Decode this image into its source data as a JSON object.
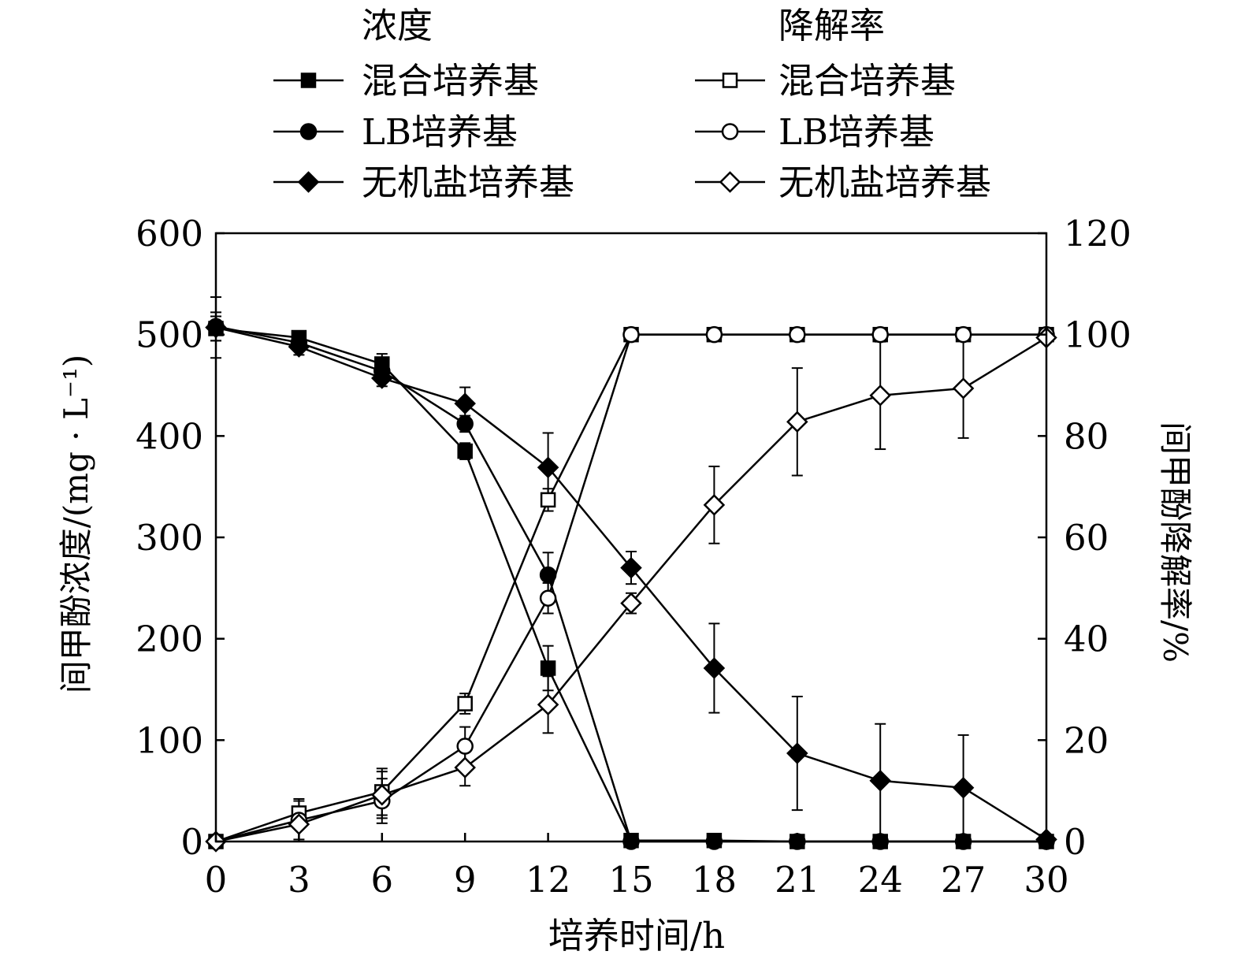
{
  "chart_data": {
    "type": "line",
    "xlabel": "培养时间/h",
    "ylabel_left": "间甲酚浓度/(mg · L⁻¹)",
    "ylabel_right": "间甲酚降解率/%",
    "x": [
      0,
      3,
      6,
      9,
      12,
      15,
      18,
      21,
      24,
      27,
      30
    ],
    "xlim": [
      0,
      30
    ],
    "ylim_left": [
      0,
      600
    ],
    "ylim_right": [
      0,
      120
    ],
    "xticks": [
      "0",
      "3",
      "6",
      "9",
      "12",
      "15",
      "18",
      "21",
      "24",
      "27",
      "30"
    ],
    "yticks_left": [
      "0",
      "100",
      "200",
      "300",
      "400",
      "500",
      "600"
    ],
    "yticks_right": [
      "0",
      "20",
      "40",
      "60",
      "80",
      "100",
      "120"
    ],
    "legend": {
      "concentration_title": "浓度",
      "degradation_title": "降解率"
    },
    "series": [
      {
        "name": "混合培养基",
        "group": "浓度",
        "axis": "left",
        "marker": "square",
        "filled": true,
        "values": [
          506,
          497,
          471,
          385,
          171,
          1,
          1,
          0,
          0,
          0,
          0
        ],
        "errors": [
          12,
          4,
          10,
          8,
          22,
          2,
          2,
          2,
          2,
          2,
          2
        ]
      },
      {
        "name": "LB培养基",
        "group": "浓度",
        "axis": "left",
        "marker": "circle",
        "filled": true,
        "values": [
          508,
          492,
          464,
          412,
          263,
          0,
          0,
          0,
          0,
          0,
          0
        ],
        "errors": [
          14,
          6,
          10,
          8,
          22,
          2,
          2,
          2,
          2,
          2,
          2
        ]
      },
      {
        "name": "无机盐培养基",
        "group": "浓度",
        "axis": "left",
        "marker": "diamond",
        "filled": true,
        "values": [
          507,
          488,
          457,
          432,
          369,
          270,
          171,
          87,
          60,
          53,
          2
        ],
        "errors": [
          30,
          8,
          8,
          16,
          34,
          16,
          44,
          56,
          56,
          52,
          4
        ]
      },
      {
        "name": "混合培养基",
        "group": "降解率",
        "axis": "right",
        "marker": "square",
        "filled": false,
        "values": [
          0,
          5.6,
          9.8,
          27.2,
          67.4,
          100,
          100,
          100,
          100,
          100,
          100
        ],
        "errors": [
          0.4,
          2.4,
          4.6,
          2.0,
          2.2,
          0.4,
          0.4,
          0.4,
          0.4,
          0.4,
          0.4
        ]
      },
      {
        "name": "LB培养基",
        "group": "降解率",
        "axis": "right",
        "marker": "circle",
        "filled": false,
        "values": [
          0,
          4.2,
          8.0,
          18.8,
          48.0,
          100,
          100,
          100,
          100,
          100,
          100
        ],
        "errors": [
          0.4,
          4.2,
          4.4,
          3.8,
          3.0,
          0.4,
          0.4,
          0.4,
          0.4,
          0.4,
          0.4
        ]
      },
      {
        "name": "无机盐培养基",
        "group": "降解率",
        "axis": "right",
        "marker": "diamond",
        "filled": false,
        "values": [
          0,
          3.4,
          9.2,
          14.6,
          27.0,
          47.0,
          66.4,
          82.8,
          88.0,
          89.4,
          99.4
        ],
        "errors": [
          0.4,
          3.0,
          4.6,
          3.6,
          5.6,
          2.0,
          7.6,
          10.6,
          10.6,
          9.8,
          0.8
        ]
      }
    ]
  }
}
